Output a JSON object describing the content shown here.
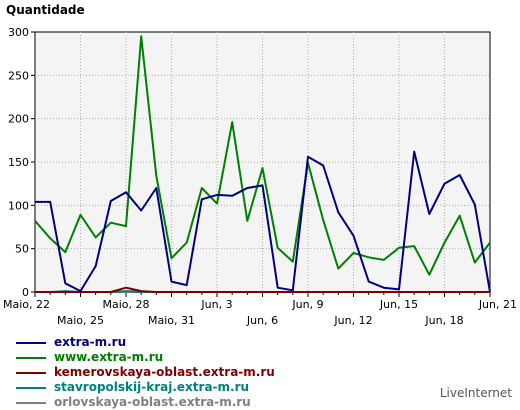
{
  "chart_data": {
    "type": "line",
    "ylabel": "Quantidade",
    "ylim": [
      0,
      300
    ],
    "yticks": [
      0,
      50,
      100,
      150,
      200,
      250,
      300
    ],
    "categories": [
      "Maio, 22",
      "Maio, 23",
      "Maio, 24",
      "Maio, 25",
      "Maio, 26",
      "Maio, 27",
      "Maio, 28",
      "Maio, 29",
      "Maio, 30",
      "Maio, 31",
      "Jun, 1",
      "Jun, 2",
      "Jun, 3",
      "Jun, 4",
      "Jun, 5",
      "Jun, 6",
      "Jun, 7",
      "Jun, 8",
      "Jun, 9",
      "Jun, 10",
      "Jun, 11",
      "Jun, 12",
      "Jun, 13",
      "Jun, 14",
      "Jun, 15",
      "Jun, 16",
      "Jun, 17",
      "Jun, 18",
      "Jun, 19",
      "Jun, 20",
      "Jun, 21"
    ],
    "tick_labels_row1": [
      {
        "i": 0,
        "label": "Maio, 22"
      },
      {
        "i": 6,
        "label": "Maio, 28"
      },
      {
        "i": 12,
        "label": "Jun, 3"
      },
      {
        "i": 18,
        "label": "Jun, 9"
      },
      {
        "i": 24,
        "label": "Jun, 15"
      },
      {
        "i": 30,
        "label": "Jun, 21"
      }
    ],
    "tick_labels_row2": [
      {
        "i": 3,
        "label": "Maio, 25"
      },
      {
        "i": 9,
        "label": "Maio, 31"
      },
      {
        "i": 15,
        "label": "Jun, 6"
      },
      {
        "i": 21,
        "label": "Jun, 12"
      },
      {
        "i": 27,
        "label": "Jun, 18"
      }
    ],
    "series": [
      {
        "name": "extra-m.ru",
        "color": "#000080",
        "values": [
          104,
          104,
          10,
          1,
          30,
          105,
          115,
          94,
          120,
          12,
          8,
          107,
          112,
          111,
          120,
          123,
          5,
          2,
          156,
          146,
          92,
          65,
          12,
          5,
          3,
          162,
          90,
          125,
          135,
          101,
          0
        ]
      },
      {
        "name": "www.extra-m.ru",
        "color": "#008000",
        "values": [
          82,
          62,
          46,
          89,
          63,
          80,
          76,
          295,
          134,
          39,
          57,
          120,
          102,
          196,
          82,
          143,
          51,
          35,
          149,
          83,
          27,
          45,
          40,
          37,
          51,
          53,
          20,
          57,
          88,
          34,
          57
        ]
      },
      {
        "name": "kemerovskaya-oblast.extra-m.ru",
        "color": "#800000",
        "values": [
          0,
          0,
          0,
          0,
          0,
          0,
          5,
          1,
          0,
          0,
          0,
          0,
          0,
          0,
          0,
          0,
          0,
          0,
          0,
          0,
          0,
          0,
          0,
          0,
          0,
          0,
          0,
          0,
          0,
          0,
          0
        ]
      },
      {
        "name": "stavropolskij-kraj.extra-m.ru",
        "color": "#008080",
        "values": [
          0,
          0,
          1,
          0,
          0,
          0,
          1,
          0,
          0,
          0,
          0,
          0,
          0,
          0,
          0,
          0,
          0,
          0,
          0,
          0,
          0,
          0,
          0,
          0,
          0,
          0,
          0,
          0,
          0,
          0,
          0
        ]
      },
      {
        "name": "orlovskaya-oblast.extra-m.ru",
        "color": "#808080",
        "values": [
          0,
          0,
          0,
          0,
          0,
          0,
          0,
          0,
          0,
          0,
          0,
          0,
          0,
          0,
          0,
          0,
          0,
          0,
          0,
          0,
          0,
          0,
          0,
          0,
          0,
          0,
          0,
          0,
          0,
          0,
          0
        ]
      }
    ]
  },
  "brand": "LiveInternet"
}
